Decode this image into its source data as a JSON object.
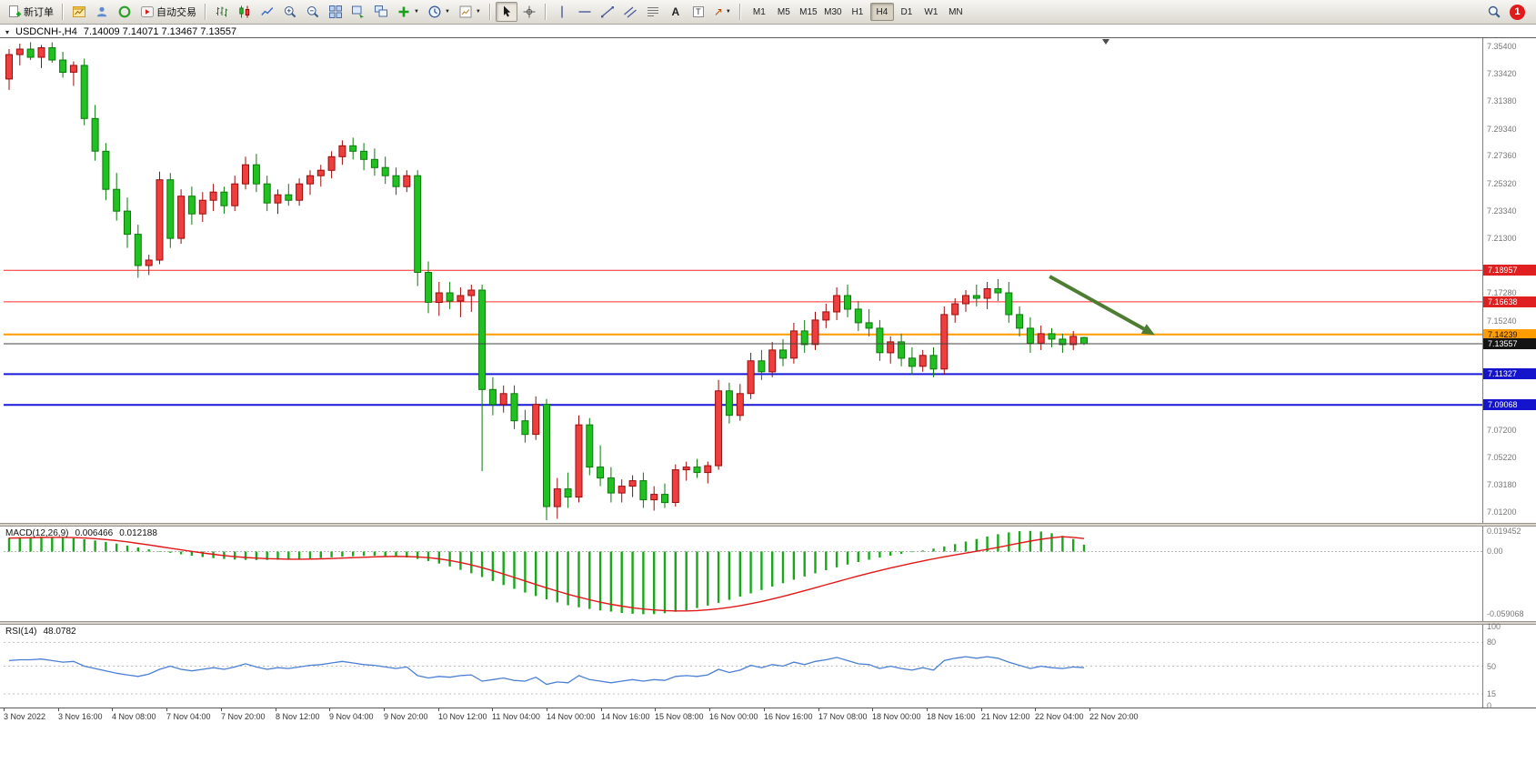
{
  "toolbar": {
    "new_order_label": "新订单",
    "auto_trading_label": "自动交易",
    "text_tool_label": "A",
    "label_tool_letter": "T",
    "arrows_tool_glyph": "↗",
    "timeframes": [
      "M1",
      "M5",
      "M15",
      "M30",
      "H1",
      "H4",
      "D1",
      "W1",
      "MN"
    ],
    "active_timeframe": "H4",
    "notification_badge": "1"
  },
  "chart": {
    "title": "USDCNH-,H4",
    "ohlc_text": "7.14009 7.14071 7.13467 7.13557"
  },
  "chart_data": {
    "type": "candlestick",
    "symbol": "USDCNH-",
    "timeframe": "H4",
    "current": {
      "open": 7.14009,
      "high": 7.14071,
      "low": 7.13467,
      "close": 7.13557
    },
    "price_range": {
      "min": 7.004,
      "max": 7.36
    },
    "up_color": "#ef3e3e",
    "up_stroke": "#9c0b0b",
    "down_color": "#22c122",
    "down_stroke": "#0b7a0b",
    "price_axis_labels": [
      "7.35400",
      "7.33420",
      "7.31380",
      "7.29340",
      "7.27360",
      "7.25320",
      "7.23340",
      "7.21300",
      "7.17280",
      "7.15240",
      "7.07200",
      "7.05220",
      "7.03180",
      "7.01200"
    ],
    "hlines": [
      {
        "price": 7.18957,
        "text": "7.18957",
        "color": "#ff2a2a",
        "width": 1,
        "bg": "#e02020",
        "fg": "#ffffff",
        "on_top": false
      },
      {
        "price": 7.16638,
        "text": "7.16638",
        "color": "#ff2a2a",
        "width": 1,
        "bg": "#e02020",
        "fg": "#ffffff",
        "on_top": false
      },
      {
        "price": 7.14239,
        "text": "7.14239",
        "color": "#ff9c00",
        "width": 2,
        "bg": "#ff9c00",
        "fg": "#1a1200",
        "on_top": false
      },
      {
        "price": 7.13557,
        "text": "7.13557",
        "color": "#444444",
        "width": 1,
        "bg": "#141414",
        "fg": "#ffffff",
        "on_top": true
      },
      {
        "price": 7.11327,
        "text": "7.11327",
        "color": "#1818d8",
        "width": 2,
        "bg": "#1414cc",
        "fg": "#ffffff",
        "on_top": false
      },
      {
        "price": 7.09068,
        "text": "7.09068",
        "color": "#1818d8",
        "width": 2,
        "bg": "#1414cc",
        "fg": "#ffffff",
        "on_top": false
      }
    ],
    "time_labels": [
      "3 Nov 2022",
      "3 Nov 16:00",
      "4 Nov 08:00",
      "7 Nov 04:00",
      "7 Nov 20:00",
      "8 Nov 12:00",
      "9 Nov 04:00",
      "9 Nov 20:00",
      "10 Nov 12:00",
      "11 Nov 04:00",
      "14 Nov 00:00",
      "14 Nov 16:00",
      "15 Nov 08:00",
      "16 Nov 00:00",
      "16 Nov 16:00",
      "17 Nov 08:00",
      "18 Nov 00:00",
      "18 Nov 16:00",
      "21 Nov 12:00",
      "22 Nov 04:00",
      "22 Nov 20:00"
    ],
    "arrow": {
      "start": {
        "index": 96.8,
        "price": 7.185
      },
      "end": {
        "index": 106.6,
        "price": 7.142
      },
      "color": "#4e7d32"
    },
    "candles": [
      [
        7.33,
        7.352,
        7.322,
        7.348
      ],
      [
        7.348,
        7.356,
        7.34,
        7.352
      ],
      [
        7.352,
        7.357,
        7.344,
        7.346
      ],
      [
        7.346,
        7.355,
        7.338,
        7.353
      ],
      [
        7.353,
        7.357,
        7.342,
        7.344
      ],
      [
        7.344,
        7.35,
        7.331,
        7.335
      ],
      [
        7.335,
        7.343,
        7.325,
        7.34
      ],
      [
        7.34,
        7.345,
        7.296,
        7.301
      ],
      [
        7.301,
        7.311,
        7.27,
        7.277
      ],
      [
        7.277,
        7.283,
        7.241,
        7.249
      ],
      [
        7.249,
        7.261,
        7.226,
        7.233
      ],
      [
        7.233,
        7.243,
        7.206,
        7.216
      ],
      [
        7.216,
        7.223,
        7.184,
        7.193
      ],
      [
        7.193,
        7.201,
        7.186,
        7.197
      ],
      [
        7.197,
        7.262,
        7.194,
        7.256
      ],
      [
        7.256,
        7.261,
        7.206,
        7.213
      ],
      [
        7.213,
        7.249,
        7.209,
        7.244
      ],
      [
        7.244,
        7.251,
        7.223,
        7.231
      ],
      [
        7.231,
        7.247,
        7.225,
        7.241
      ],
      [
        7.241,
        7.253,
        7.233,
        7.247
      ],
      [
        7.247,
        7.251,
        7.231,
        7.237
      ],
      [
        7.237,
        7.259,
        7.233,
        7.253
      ],
      [
        7.253,
        7.273,
        7.249,
        7.267
      ],
      [
        7.267,
        7.275,
        7.247,
        7.253
      ],
      [
        7.253,
        7.259,
        7.233,
        7.239
      ],
      [
        7.239,
        7.249,
        7.231,
        7.245
      ],
      [
        7.245,
        7.253,
        7.237,
        7.241
      ],
      [
        7.241,
        7.257,
        7.237,
        7.253
      ],
      [
        7.253,
        7.263,
        7.245,
        7.259
      ],
      [
        7.259,
        7.267,
        7.251,
        7.263
      ],
      [
        7.263,
        7.277,
        7.257,
        7.273
      ],
      [
        7.273,
        7.285,
        7.267,
        7.281
      ],
      [
        7.281,
        7.287,
        7.271,
        7.277
      ],
      [
        7.277,
        7.283,
        7.263,
        7.271
      ],
      [
        7.271,
        7.279,
        7.259,
        7.265
      ],
      [
        7.265,
        7.273,
        7.253,
        7.259
      ],
      [
        7.259,
        7.265,
        7.245,
        7.251
      ],
      [
        7.251,
        7.263,
        7.247,
        7.259
      ],
      [
        7.259,
        7.263,
        7.178,
        7.188
      ],
      [
        7.188,
        7.196,
        7.158,
        7.166
      ],
      [
        7.166,
        7.181,
        7.156,
        7.173
      ],
      [
        7.173,
        7.181,
        7.161,
        7.167
      ],
      [
        7.167,
        7.177,
        7.155,
        7.171
      ],
      [
        7.171,
        7.179,
        7.159,
        7.175
      ],
      [
        7.175,
        7.179,
        7.042,
        7.102
      ],
      [
        7.102,
        7.111,
        7.083,
        7.091
      ],
      [
        7.091,
        7.105,
        7.085,
        7.099
      ],
      [
        7.099,
        7.105,
        7.073,
        7.079
      ],
      [
        7.079,
        7.087,
        7.063,
        7.069
      ],
      [
        7.069,
        7.097,
        7.065,
        7.091
      ],
      [
        7.091,
        7.095,
        7.006,
        7.016
      ],
      [
        7.016,
        7.037,
        7.007,
        7.029
      ],
      [
        7.029,
        7.041,
        7.015,
        7.023
      ],
      [
        7.023,
        7.083,
        7.019,
        7.076
      ],
      [
        7.076,
        7.081,
        7.039,
        7.045
      ],
      [
        7.045,
        7.061,
        7.031,
        7.037
      ],
      [
        7.037,
        7.045,
        7.019,
        7.026
      ],
      [
        7.026,
        7.036,
        7.019,
        7.031
      ],
      [
        7.031,
        7.039,
        7.023,
        7.035
      ],
      [
        7.035,
        7.041,
        7.015,
        7.021
      ],
      [
        7.021,
        7.031,
        7.013,
        7.025
      ],
      [
        7.025,
        7.033,
        7.015,
        7.019
      ],
      [
        7.019,
        7.047,
        7.016,
        7.043
      ],
      [
        7.043,
        7.049,
        7.035,
        7.045
      ],
      [
        7.045,
        7.051,
        7.037,
        7.041
      ],
      [
        7.041,
        7.049,
        7.033,
        7.046
      ],
      [
        7.046,
        7.109,
        7.043,
        7.101
      ],
      [
        7.101,
        7.107,
        7.077,
        7.083
      ],
      [
        7.083,
        7.106,
        7.079,
        7.099
      ],
      [
        7.099,
        7.129,
        7.095,
        7.123
      ],
      [
        7.123,
        7.131,
        7.109,
        7.115
      ],
      [
        7.115,
        7.137,
        7.111,
        7.131
      ],
      [
        7.131,
        7.139,
        7.119,
        7.125
      ],
      [
        7.125,
        7.151,
        7.121,
        7.145
      ],
      [
        7.145,
        7.153,
        7.129,
        7.135
      ],
      [
        7.135,
        7.159,
        7.131,
        7.153
      ],
      [
        7.153,
        7.165,
        7.147,
        7.159
      ],
      [
        7.159,
        7.177,
        7.153,
        7.171
      ],
      [
        7.171,
        7.179,
        7.155,
        7.161
      ],
      [
        7.161,
        7.167,
        7.145,
        7.151
      ],
      [
        7.151,
        7.161,
        7.141,
        7.147
      ],
      [
        7.147,
        7.153,
        7.123,
        7.129
      ],
      [
        7.129,
        7.141,
        7.121,
        7.137
      ],
      [
        7.137,
        7.143,
        7.119,
        7.125
      ],
      [
        7.125,
        7.133,
        7.113,
        7.119
      ],
      [
        7.119,
        7.131,
        7.115,
        7.127
      ],
      [
        7.127,
        7.133,
        7.111,
        7.117
      ],
      [
        7.117,
        7.163,
        7.113,
        7.157
      ],
      [
        7.157,
        7.169,
        7.151,
        7.165
      ],
      [
        7.165,
        7.175,
        7.159,
        7.171
      ],
      [
        7.171,
        7.179,
        7.163,
        7.169
      ],
      [
        7.169,
        7.181,
        7.161,
        7.176
      ],
      [
        7.176,
        7.183,
        7.167,
        7.173
      ],
      [
        7.173,
        7.181,
        7.151,
        7.157
      ],
      [
        7.157,
        7.163,
        7.141,
        7.147
      ],
      [
        7.147,
        7.155,
        7.129,
        7.136
      ],
      [
        7.136,
        7.149,
        7.131,
        7.143
      ],
      [
        7.143,
        7.147,
        7.133,
        7.139
      ],
      [
        7.139,
        7.143,
        7.129,
        7.135
      ],
      [
        7.135,
        7.145,
        7.131,
        7.141
      ],
      [
        7.14009,
        7.14071,
        7.13467,
        7.13557
      ]
    ],
    "macd": {
      "label": "MACD(12,26,9)",
      "value_main": "0.006466",
      "value_signal": "0.012188",
      "scale_labels": [
        "0.019452",
        "0.00",
        "-0.059068"
      ],
      "range": {
        "min": -0.0655,
        "max": 0.0235
      },
      "histogram_color": "#1aa81a",
      "signal_color": "#e01818",
      "histogram": [
        0.013,
        0.0134,
        0.0137,
        0.0138,
        0.0136,
        0.0131,
        0.0124,
        0.0115,
        0.0104,
        0.009,
        0.0074,
        0.0056,
        0.0038,
        0.002,
        0.0004,
        -0.0012,
        -0.0026,
        -0.004,
        -0.0052,
        -0.0062,
        -0.007,
        -0.0076,
        -0.0079,
        -0.008,
        -0.0079,
        -0.0077,
        -0.0074,
        -0.007,
        -0.0065,
        -0.006,
        -0.0054,
        -0.0049,
        -0.0044,
        -0.0041,
        -0.004,
        -0.0042,
        -0.0047,
        -0.0056,
        -0.007,
        -0.0089,
        -0.0113,
        -0.0141,
        -0.0172,
        -0.0205,
        -0.024,
        -0.0278,
        -0.0315,
        -0.0351,
        -0.0386,
        -0.0419,
        -0.045,
        -0.0479,
        -0.0505,
        -0.0525,
        -0.054,
        -0.0555,
        -0.0565,
        -0.0578,
        -0.0586,
        -0.059,
        -0.0588,
        -0.058,
        -0.0568,
        -0.0552,
        -0.0532,
        -0.0509,
        -0.0483,
        -0.0455,
        -0.0425,
        -0.0394,
        -0.0362,
        -0.033,
        -0.0298,
        -0.0266,
        -0.0235,
        -0.0205,
        -0.0176,
        -0.0149,
        -0.0123,
        -0.0099,
        -0.0077,
        -0.0057,
        -0.0039,
        -0.0022,
        -0.0006,
        0.001,
        0.0028,
        0.0048,
        0.007,
        0.0094,
        0.0118,
        0.0142,
        0.0163,
        0.018,
        0.0191,
        0.0194,
        0.0188,
        0.0172,
        0.0148,
        0.0118,
        0.0065
      ],
      "signal": [
        0.0126,
        0.0128,
        0.013,
        0.0132,
        0.0133,
        0.0133,
        0.0131,
        0.0127,
        0.0121,
        0.0113,
        0.0103,
        0.0091,
        0.0077,
        0.0062,
        0.0047,
        0.0031,
        0.0016,
        0.0001,
        -0.0013,
        -0.0026,
        -0.0038,
        -0.0048,
        -0.0056,
        -0.0062,
        -0.0067,
        -0.007,
        -0.0072,
        -0.0072,
        -0.0071,
        -0.0069,
        -0.0066,
        -0.0062,
        -0.0058,
        -0.0054,
        -0.005,
        -0.0047,
        -0.0046,
        -0.0047,
        -0.0051,
        -0.0058,
        -0.0069,
        -0.0084,
        -0.0103,
        -0.0126,
        -0.0152,
        -0.0181,
        -0.0212,
        -0.0244,
        -0.0277,
        -0.031,
        -0.0342,
        -0.0373,
        -0.0402,
        -0.0429,
        -0.0454,
        -0.0477,
        -0.0497,
        -0.0514,
        -0.0529,
        -0.0541,
        -0.055,
        -0.0556,
        -0.0559,
        -0.0559,
        -0.0556,
        -0.0549,
        -0.0539,
        -0.0526,
        -0.051,
        -0.0491,
        -0.047,
        -0.0447,
        -0.0422,
        -0.0396,
        -0.0369,
        -0.0341,
        -0.0313,
        -0.0285,
        -0.0257,
        -0.023,
        -0.0204,
        -0.0179,
        -0.0155,
        -0.0132,
        -0.011,
        -0.0089,
        -0.0069,
        -0.005,
        -0.0032,
        -0.0015,
        0.0002,
        0.002,
        0.0039,
        0.0059,
        0.0079,
        0.0098,
        0.0115,
        0.0129,
        0.0139,
        0.0133,
        0.0122
      ]
    },
    "rsi": {
      "label": "RSI(14)",
      "value": "48.0782",
      "scale_labels": [
        "100",
        "80",
        "50",
        "15",
        "0"
      ],
      "levels": [
        80,
        50,
        15
      ],
      "range": {
        "min": 0,
        "max": 100
      },
      "color": "#4a7fd4",
      "values": [
        57,
        58,
        58,
        59,
        57,
        55,
        56,
        50,
        47,
        44,
        41,
        39,
        37,
        40,
        46,
        50,
        46,
        44,
        46,
        48,
        46,
        49,
        53,
        49,
        46,
        48,
        47,
        49,
        51,
        52,
        54,
        56,
        54,
        52,
        51,
        49,
        47,
        49,
        38,
        35,
        37,
        36,
        38,
        39,
        31,
        33,
        35,
        32,
        31,
        36,
        27,
        30,
        29,
        38,
        33,
        31,
        29,
        31,
        33,
        31,
        33,
        32,
        37,
        38,
        37,
        39,
        46,
        42,
        45,
        51,
        48,
        52,
        50,
        55,
        52,
        56,
        58,
        61,
        57,
        53,
        52,
        47,
        50,
        47,
        45,
        48,
        45,
        57,
        60,
        62,
        60,
        62,
        60,
        55,
        51,
        47,
        50,
        48,
        47,
        49,
        48.1
      ]
    }
  }
}
